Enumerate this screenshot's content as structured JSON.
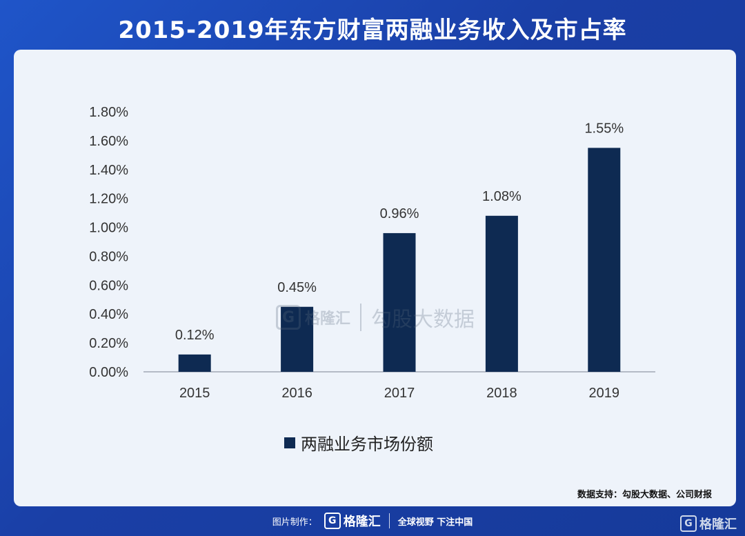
{
  "title": "2015-2019年东方财富两融业务收入及市占率",
  "chart_data": {
    "type": "bar",
    "categories": [
      "2015",
      "2016",
      "2017",
      "2018",
      "2019"
    ],
    "series": [
      {
        "name": "两融业务市场份额",
        "values": [
          0.12,
          0.45,
          0.96,
          1.08,
          1.55
        ]
      }
    ],
    "data_labels": [
      "0.12%",
      "0.45%",
      "0.96%",
      "1.08%",
      "1.55%"
    ],
    "y_ticks": [
      "0.00%",
      "0.20%",
      "0.40%",
      "0.60%",
      "0.80%",
      "1.00%",
      "1.20%",
      "1.40%",
      "1.60%",
      "1.80%"
    ],
    "ylim": [
      0,
      1.8
    ],
    "grid": false,
    "legend_position": "bottom",
    "bar_color": "#0e2a52"
  },
  "legend": {
    "label": "两融业务市场份额"
  },
  "source": "数据支持：勾股大数据、公司财报",
  "watermark": {
    "logo_letter": "G",
    "brand": "格隆汇",
    "sub": "勾股大数据"
  },
  "footer": {
    "made_by": "图片制作：",
    "logo_letter": "G",
    "brand": "格隆汇",
    "slogan": "全球视野 下注中国"
  },
  "corner_brand": {
    "logo_letter": "G",
    "brand": "格隆汇"
  },
  "colors": {
    "background": "#1a3fa6",
    "panel": "#eef3fa",
    "bar": "#0e2a52"
  }
}
